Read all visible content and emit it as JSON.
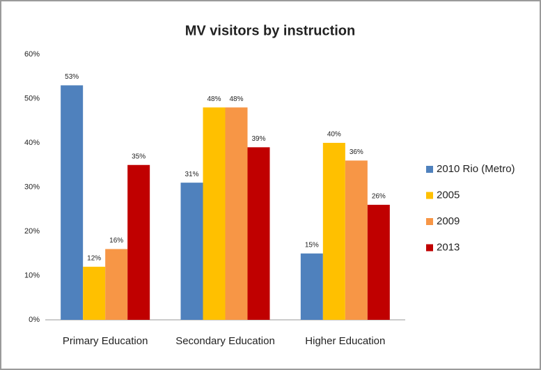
{
  "chart_data": {
    "type": "bar",
    "title": "MV visitors by instruction",
    "categories": [
      "Primary Education",
      "Secondary Education",
      "Higher Education"
    ],
    "series": [
      {
        "name": "2010 Rio (Metro)",
        "color": "#4f81bd",
        "values": [
          53,
          31,
          15
        ],
        "value_labels": [
          "53%",
          "31%",
          "15%"
        ]
      },
      {
        "name": "2005",
        "color": "#ffc000",
        "values": [
          12,
          48,
          40
        ],
        "value_labels": [
          "12%",
          "48%",
          "40%"
        ]
      },
      {
        "name": "2009",
        "color": "#f79646",
        "values": [
          16,
          48,
          36
        ],
        "value_labels": [
          "16%",
          "48%",
          "36%"
        ]
      },
      {
        "name": "2013",
        "color": "#c00000",
        "values": [
          35,
          39,
          26
        ],
        "value_labels": [
          "35%",
          "39%",
          "26%"
        ]
      }
    ],
    "ylim": [
      0,
      60
    ],
    "yticks": [
      {
        "value": 0,
        "label": "0%"
      },
      {
        "value": 10,
        "label": "10%"
      },
      {
        "value": 20,
        "label": "20%"
      },
      {
        "value": 30,
        "label": "30%"
      },
      {
        "value": 40,
        "label": "40%"
      },
      {
        "value": 50,
        "label": "50%"
      },
      {
        "value": 60,
        "label": "60%"
      }
    ],
    "grid": false,
    "legend": "right"
  }
}
